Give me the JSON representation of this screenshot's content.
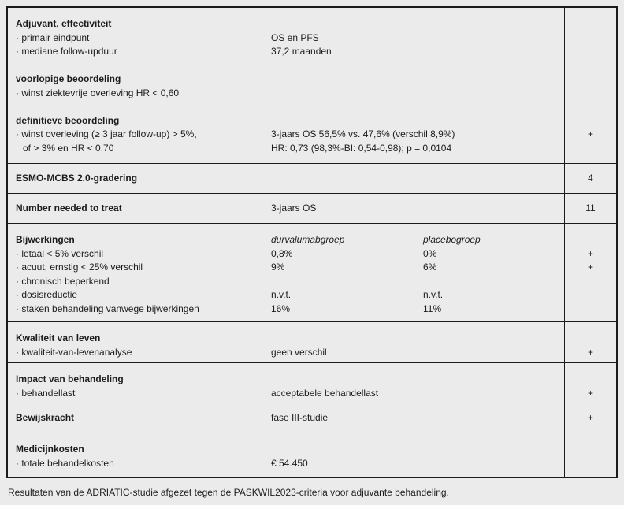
{
  "page": {
    "background_color": "#ebebeb",
    "border_color": "#1b1b1b",
    "text_color": "#1c1c1c",
    "caption": "Resultaten van de ADRIATIC-studie afgezet tegen de PASKWIL2023-criteria voor adjuvante behandeling."
  },
  "table": {
    "rows": [
      {
        "name": "effectiviteit",
        "criteria": [
          "Adjuvant, effectiviteit",
          "· primair eindpunt",
          "· mediane follow-upduur",
          "",
          "voorlopige beoordeling",
          "· winst ziektevrije overleving HR < 0,60",
          "",
          "definitieve beoordeling",
          "· winst overleving (≥ 3 jaar follow-up) > 5%,",
          "of > 3% en HR < 0,70"
        ],
        "values": [
          "",
          "OS en PFS",
          "37,2 maanden",
          "",
          "",
          "",
          "",
          "",
          "3-jaars OS 56,5% vs. 47,6% (verschil 8,9%)",
          "HR: 0,73 (98,3%-BI: 0,54-0,98); p = 0,0104"
        ],
        "score": "+"
      },
      {
        "name": "esmo-mcbs",
        "criteria": "ESMO-MCBS 2.0-gradering",
        "value": "",
        "score": "4"
      },
      {
        "name": "number-needed-to-treat",
        "criteria": "Number needed to treat",
        "value": "3-jaars OS",
        "score": "11"
      },
      {
        "name": "bijwerkingen",
        "criteria": [
          "Bijwerkingen",
          "· letaal < 5% verschil",
          "· acuut, ernstig < 25% verschil",
          "· chronisch beperkend",
          "· dosisreductie",
          "· staken behandeling vanwege bijwerkingen"
        ],
        "durvalumab": [
          "durvalumabgroep",
          "0,8%",
          "9%",
          "",
          "n.v.t.",
          "16%"
        ],
        "placebo": [
          "placebogroep",
          "0%",
          "6%",
          "",
          "n.v.t.",
          "11%"
        ],
        "scores": [
          "+",
          "+"
        ]
      },
      {
        "name": "kwaliteit-van-leven",
        "criteria": [
          "Kwaliteit van leven",
          "· kwaliteit-van-levenanalyse"
        ],
        "values": [
          "",
          "geen verschil"
        ],
        "score": "+"
      },
      {
        "name": "impact-van-behandeling",
        "criteria": [
          "Impact van behandeling",
          "· behandellast"
        ],
        "values": [
          "",
          "acceptabele behandellast"
        ],
        "score": "+"
      },
      {
        "name": "bewijskracht",
        "criteria": "Bewijskracht",
        "value": "fase III-studie",
        "score": "+"
      },
      {
        "name": "medicijnkosten",
        "criteria": [
          "Medicijnkosten",
          "· totale behandelkosten"
        ],
        "values": [
          "",
          "€ 54.450"
        ],
        "score": ""
      }
    ]
  }
}
